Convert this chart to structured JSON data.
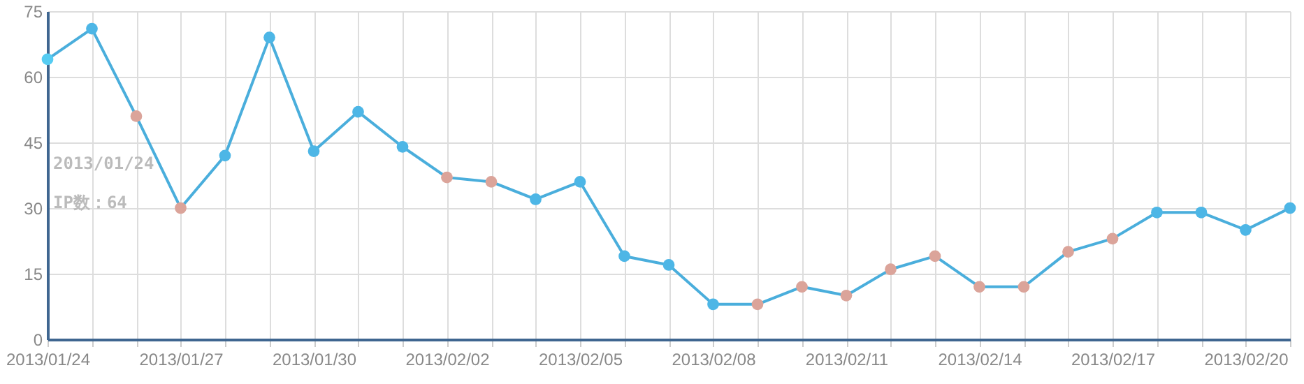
{
  "chart_data": {
    "type": "line",
    "categories": [
      "2013/01/24",
      null,
      null,
      "2013/01/27",
      null,
      null,
      "2013/01/30",
      null,
      null,
      "2013/02/02",
      null,
      null,
      "2013/02/05",
      null,
      null,
      "2013/02/08",
      null,
      null,
      "2013/02/11",
      null,
      null,
      "2013/02/14",
      null,
      null,
      "2013/02/17",
      null,
      null,
      "2013/02/20",
      null
    ],
    "series": [
      {
        "color": "#4aaedc",
        "values": [
          64,
          71,
          51,
          30,
          42,
          69,
          43,
          52,
          44,
          37,
          36,
          32,
          36,
          19,
          17,
          8,
          8,
          12,
          10,
          16,
          19,
          12,
          12,
          20,
          23,
          29,
          29,
          25,
          30
        ],
        "colors": [
          "#55ccf2",
          "#4db6e6",
          "#dba49a",
          "#dba49a",
          "#4db6e6",
          "#4db6e6",
          "#4db6e6",
          "#4db6e6",
          "#4db6e6",
          "#dba49a",
          "#dba49a",
          "#4db6e6",
          "#4db6e6",
          "#4db6e6",
          "#4db6e6",
          "#4db6e6",
          "#dba49a",
          "#dba49a",
          "#dba49a",
          "#dba49a",
          "#dba49a",
          "#dba49a",
          "#dba49a",
          "#dba49a",
          "#dba49a",
          "#4db6e6",
          "#4db6e6",
          "#4db6e6",
          "#4db6e6"
        ]
      }
    ],
    "ylim": [
      0,
      75
    ],
    "yticks": [
      0,
      15,
      30,
      45,
      60,
      75
    ],
    "grid": true,
    "marker": "circle",
    "annotations": [
      "2013/01/24\nIP数：64"
    ]
  }
}
